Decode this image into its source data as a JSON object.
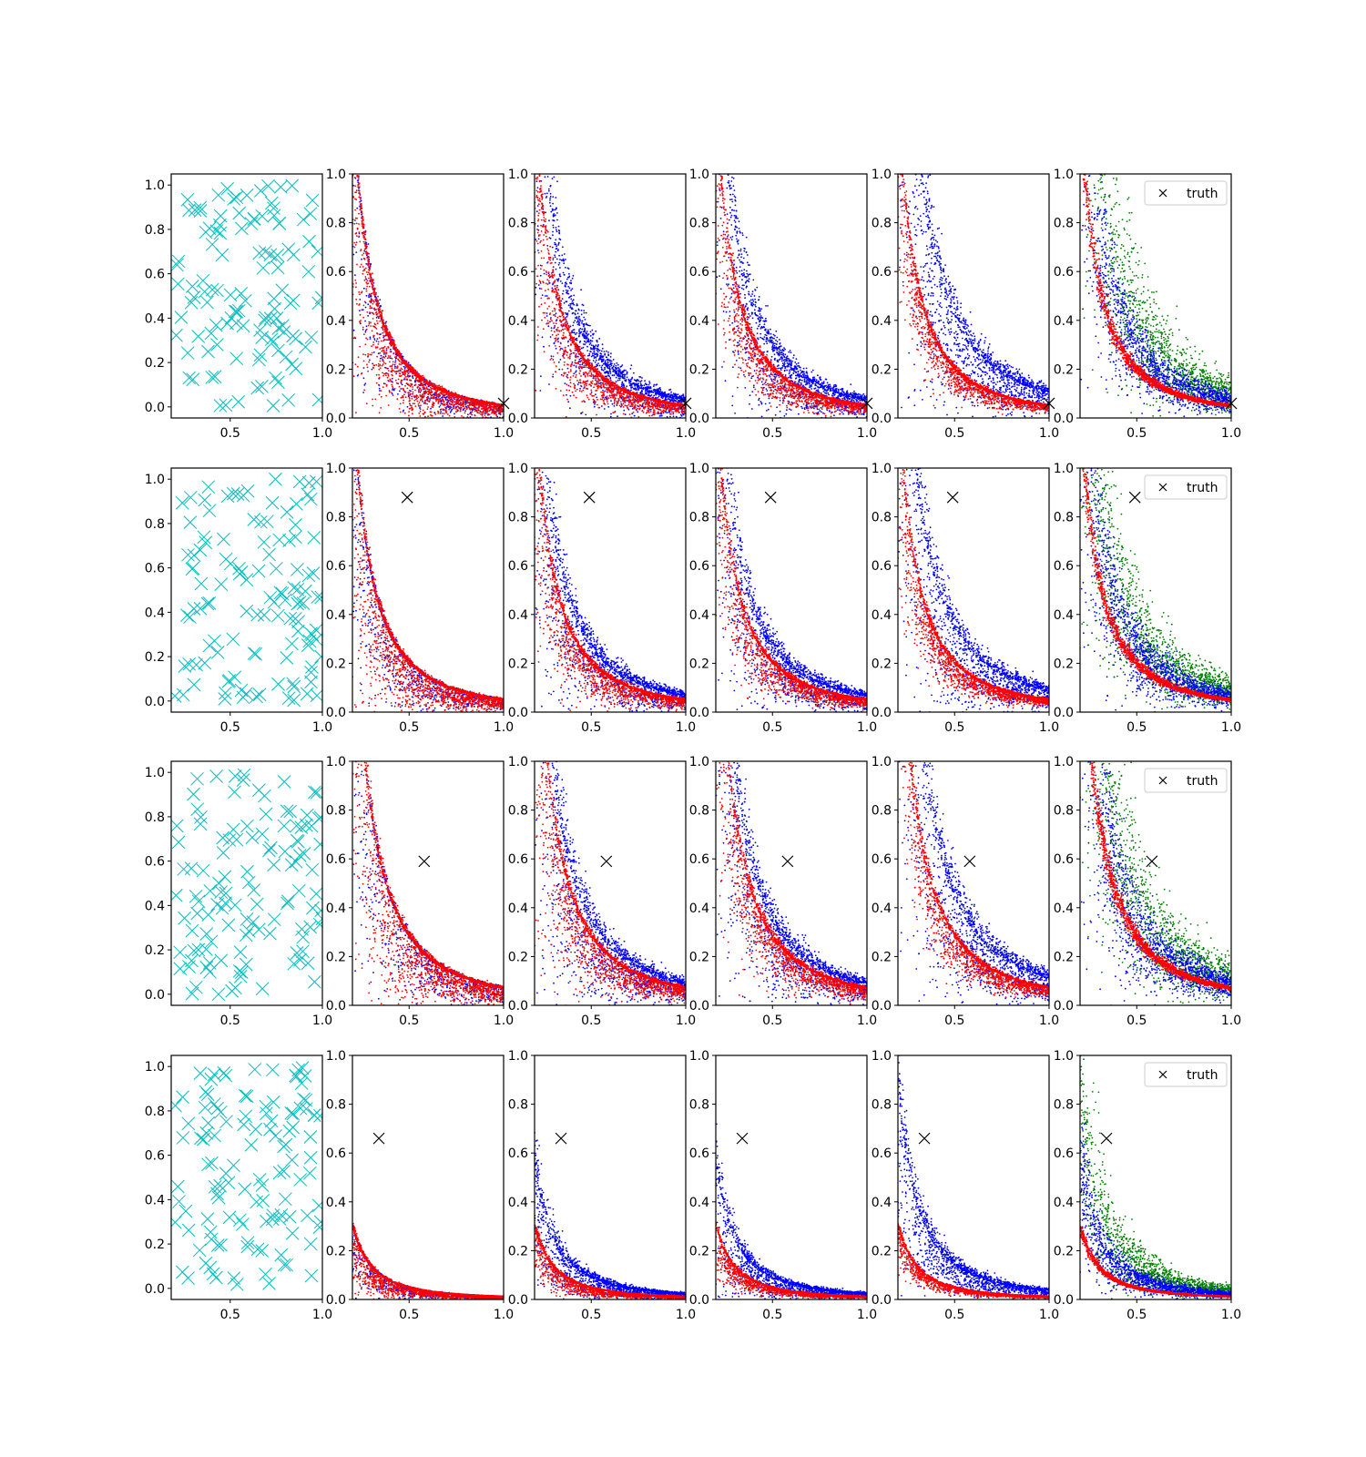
{
  "figure": {
    "rows": 4,
    "cols": 6,
    "legend_label": "truth",
    "colors": {
      "samples": "#00bfbf",
      "blue": "#0000ff",
      "red": "#ff0000",
      "green": "#008000",
      "truth": "#000000"
    }
  },
  "chart_data": {
    "type": "scatter",
    "grid": false,
    "xlim_first_column": [
      0.18,
      1.0
    ],
    "xlim_other_columns": [
      0.2,
      1.0
    ],
    "ylim_first_column": [
      -0.05,
      1.05
    ],
    "ylim_other_columns": [
      0.0,
      1.0
    ],
    "xticks": [
      "0.5",
      "1.0"
    ],
    "yticks": [
      "0.0",
      "0.2",
      "0.4",
      "0.6",
      "0.8",
      "1.0"
    ],
    "legend": {
      "entries": [
        "truth"
      ],
      "placement": "upper-right",
      "in_column": 6
    },
    "rows": [
      {
        "truth": [
          1.0,
          0.06
        ],
        "curve_k": 0.05,
        "curve_k_mid": 0.07,
        "curve_k_outer": 0.1
      },
      {
        "truth": [
          0.49,
          0.88
        ],
        "curve_k": 0.05,
        "curve_k_mid": 0.065,
        "curve_k_outer": 0.085
      },
      {
        "truth": [
          0.58,
          0.59
        ],
        "curve_k": 0.07,
        "curve_k_mid": 0.085,
        "curve_k_outer": 0.11
      },
      {
        "truth": [
          0.34,
          0.66
        ],
        "curve_k": 0.012,
        "curve_k_mid": 0.022,
        "curve_k_outer": 0.035
      }
    ],
    "panels_per_row": [
      {
        "column": 1,
        "series": [
          {
            "color": "cyan",
            "marker": "x",
            "points": "uniform random in [0.2,1]x[0,1]"
          }
        ]
      },
      {
        "column": 2,
        "series": [
          {
            "color": "blue",
            "marker": "."
          },
          {
            "color": "red",
            "marker": "."
          }
        ]
      },
      {
        "column": 3,
        "series": [
          {
            "color": "blue",
            "marker": "."
          },
          {
            "color": "red",
            "marker": "."
          }
        ]
      },
      {
        "column": 4,
        "series": [
          {
            "color": "blue",
            "marker": "."
          },
          {
            "color": "red",
            "marker": "."
          }
        ]
      },
      {
        "column": 5,
        "series": [
          {
            "color": "blue",
            "marker": "."
          },
          {
            "color": "red",
            "marker": "."
          }
        ]
      },
      {
        "column": 6,
        "series": [
          {
            "color": "green",
            "marker": "."
          },
          {
            "color": "blue",
            "marker": "."
          },
          {
            "color": "red",
            "marker": "."
          }
        ]
      }
    ]
  }
}
